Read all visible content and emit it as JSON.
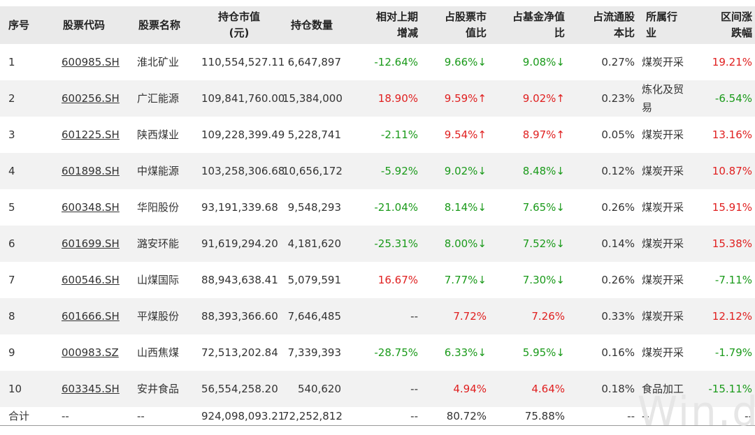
{
  "headers": {
    "idx": "序号",
    "code": "股票代码",
    "name": "股票名称",
    "mv": "持仓市值\n(元)",
    "qty": "持仓数量",
    "chg": "相对上期\n增减",
    "pct_stock": "占股票市\n值比",
    "pct_nav": "占基金净值\n比",
    "pct_float": "占流通股\n本比",
    "industry": "所属行\n业",
    "range": "区间涨\n跌幅"
  },
  "rows": [
    {
      "idx": "1",
      "code": "600985.SH",
      "name": "淮北矿业",
      "mv": "110,554,527.11",
      "qty": "6,647,897",
      "chg": "-12.64%",
      "pct_stock": "9.66%↓",
      "pct_nav": "9.08%↓",
      "pct_float": "0.27%",
      "industry": "煤炭开采",
      "range": "19.21%"
    },
    {
      "idx": "2",
      "code": "600256.SH",
      "name": "广汇能源",
      "mv": "109,841,760.00",
      "qty": "15,384,000",
      "chg": "18.90%",
      "pct_stock": "9.59%↑",
      "pct_nav": "9.02%↑",
      "pct_float": "0.23%",
      "industry": "炼化及贸易",
      "range": "-6.54%"
    },
    {
      "idx": "3",
      "code": "601225.SH",
      "name": "陕西煤业",
      "mv": "109,228,399.49",
      "qty": "5,228,741",
      "chg": "-2.11%",
      "pct_stock": "9.54%↑",
      "pct_nav": "8.97%↑",
      "pct_float": "0.05%",
      "industry": "煤炭开采",
      "range": "13.16%"
    },
    {
      "idx": "4",
      "code": "601898.SH",
      "name": "中煤能源",
      "mv": "103,258,306.68",
      "qty": "10,656,172",
      "chg": "-5.92%",
      "pct_stock": "9.02%↓",
      "pct_nav": "8.48%↓",
      "pct_float": "0.12%",
      "industry": "煤炭开采",
      "range": "10.87%"
    },
    {
      "idx": "5",
      "code": "600348.SH",
      "name": "华阳股份",
      "mv": "93,191,339.68",
      "qty": "9,548,293",
      "chg": "-21.04%",
      "pct_stock": "8.14%↓",
      "pct_nav": "7.65%↓",
      "pct_float": "0.26%",
      "industry": "煤炭开采",
      "range": "15.91%"
    },
    {
      "idx": "6",
      "code": "601699.SH",
      "name": "潞安环能",
      "mv": "91,619,294.20",
      "qty": "4,181,620",
      "chg": "-25.31%",
      "pct_stock": "8.00%↓",
      "pct_nav": "7.52%↓",
      "pct_float": "0.14%",
      "industry": "煤炭开采",
      "range": "15.38%"
    },
    {
      "idx": "7",
      "code": "600546.SH",
      "name": "山煤国际",
      "mv": "88,943,638.41",
      "qty": "5,079,591",
      "chg": "16.67%",
      "pct_stock": "7.77%↓",
      "pct_nav": "7.30%↓",
      "pct_float": "0.26%",
      "industry": "煤炭开采",
      "range": "-7.11%"
    },
    {
      "idx": "8",
      "code": "601666.SH",
      "name": "平煤股份",
      "mv": "88,393,366.60",
      "qty": "7,646,485",
      "chg": "--",
      "pct_stock": "7.72%",
      "pct_nav": "7.26%",
      "pct_float": "0.33%",
      "industry": "煤炭开采",
      "range": "12.12%"
    },
    {
      "idx": "9",
      "code": "000983.SZ",
      "name": "山西焦煤",
      "mv": "72,513,202.84",
      "qty": "7,339,393",
      "chg": "-28.75%",
      "pct_stock": "6.33%↓",
      "pct_nav": "5.95%↓",
      "pct_float": "0.16%",
      "industry": "煤炭开采",
      "range": "-1.79%"
    },
    {
      "idx": "10",
      "code": "603345.SH",
      "name": "安井食品",
      "mv": "56,554,258.20",
      "qty": "540,620",
      "chg": "--",
      "pct_stock": "4.94%",
      "pct_nav": "4.64%",
      "pct_float": "0.18%",
      "industry": "食品加工",
      "range": "-15.11%"
    }
  ],
  "total": {
    "idx": "合计",
    "code": "--",
    "name": "--",
    "mv": "924,098,093.21",
    "qty": "72,252,812",
    "chg": "--",
    "pct_stock": "80.72%",
    "pct_nav": "75.88%",
    "pct_float": "--",
    "industry": "--",
    "range": "--"
  },
  "watermark": "Win.d",
  "colors": {
    "up": "#e02020",
    "down": "#1a9a1a",
    "header_bg": "#eaeaea",
    "stripe_bg": "#f2f2f2"
  }
}
